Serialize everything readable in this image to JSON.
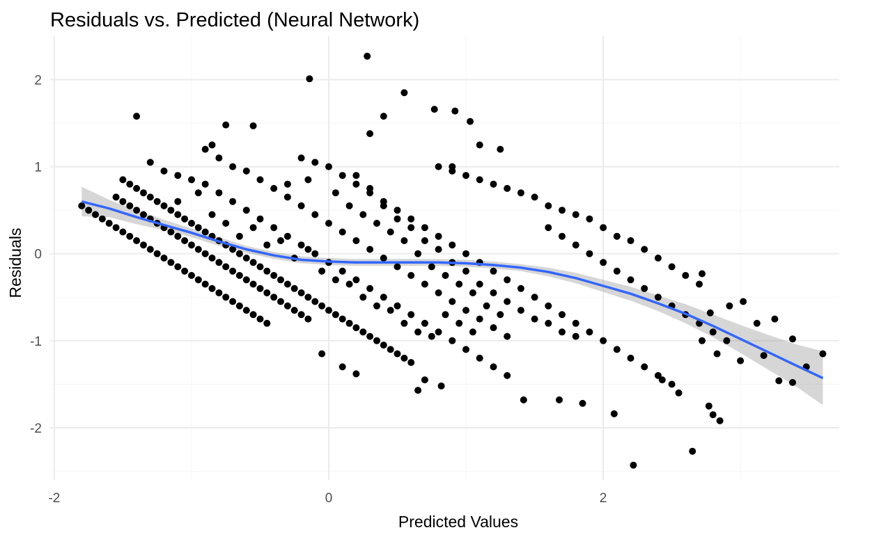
{
  "chart_data": {
    "type": "scatter",
    "title": "Residuals vs. Predicted (Neural Network)",
    "xlabel": "Predicted Values",
    "ylabel": "Residuals",
    "xlim": [
      -2.03,
      3.72
    ],
    "ylim": [
      -2.6,
      2.5
    ],
    "x_ticks": [
      -2,
      0,
      2
    ],
    "x_tick_labels": [
      "-2",
      "0",
      "2"
    ],
    "y_ticks": [
      -2,
      -1,
      0,
      1,
      2
    ],
    "y_tick_labels": [
      "-2",
      "-1",
      "0",
      "1",
      "2"
    ],
    "grid": true,
    "legend": "none",
    "colors": {
      "points": "#000000",
      "smooth_line": "#3366FF",
      "confidence_band": "#999999",
      "grid_major": "#EBEBEB",
      "grid_minor": "#F5F5F5"
    },
    "smooth": {
      "method": "loess",
      "x": [
        -1.8,
        -1.6,
        -1.4,
        -1.2,
        -1.0,
        -0.8,
        -0.6,
        -0.4,
        -0.2,
        0.0,
        0.2,
        0.4,
        0.6,
        0.8,
        1.0,
        1.2,
        1.4,
        1.6,
        1.8,
        2.0,
        2.2,
        2.4,
        2.6,
        2.8,
        3.0,
        3.2,
        3.4,
        3.6
      ],
      "y": [
        0.6,
        0.52,
        0.42,
        0.33,
        0.24,
        0.14,
        0.05,
        -0.02,
        -0.07,
        -0.09,
        -0.1,
        -0.1,
        -0.1,
        -0.1,
        -0.11,
        -0.13,
        -0.16,
        -0.21,
        -0.28,
        -0.37,
        -0.46,
        -0.57,
        -0.69,
        -0.83,
        -0.98,
        -1.13,
        -1.28,
        -1.43
      ],
      "se_upper": [
        0.77,
        0.62,
        0.5,
        0.39,
        0.29,
        0.19,
        0.09,
        0.02,
        -0.03,
        -0.05,
        -0.06,
        -0.06,
        -0.06,
        -0.06,
        -0.07,
        -0.09,
        -0.12,
        -0.16,
        -0.22,
        -0.3,
        -0.38,
        -0.48,
        -0.58,
        -0.7,
        -0.82,
        -0.93,
        -1.04,
        -1.12
      ],
      "se_lower": [
        0.43,
        0.42,
        0.34,
        0.27,
        0.19,
        0.09,
        0.01,
        -0.06,
        -0.11,
        -0.13,
        -0.14,
        -0.14,
        -0.14,
        -0.14,
        -0.15,
        -0.17,
        -0.2,
        -0.26,
        -0.34,
        -0.44,
        -0.54,
        -0.66,
        -0.8,
        -0.96,
        -1.14,
        -1.33,
        -1.52,
        -1.74
      ]
    },
    "points": [
      [
        -1.8,
        0.55
      ],
      [
        -1.75,
        0.5
      ],
      [
        -1.7,
        0.45
      ],
      [
        -1.65,
        0.4
      ],
      [
        -1.6,
        0.35
      ],
      [
        -1.55,
        0.3
      ],
      [
        -1.5,
        0.25
      ],
      [
        -1.45,
        0.2
      ],
      [
        -1.4,
        0.15
      ],
      [
        -1.35,
        0.1
      ],
      [
        -1.3,
        0.05
      ],
      [
        -1.25,
        0.0
      ],
      [
        -1.2,
        -0.05
      ],
      [
        -1.15,
        -0.1
      ],
      [
        -1.1,
        -0.15
      ],
      [
        -1.05,
        -0.2
      ],
      [
        -1.0,
        -0.25
      ],
      [
        -0.95,
        -0.3
      ],
      [
        -0.9,
        -0.35
      ],
      [
        -0.85,
        -0.4
      ],
      [
        -0.8,
        -0.45
      ],
      [
        -0.75,
        -0.5
      ],
      [
        -0.7,
        -0.55
      ],
      [
        -0.65,
        -0.6
      ],
      [
        -0.6,
        -0.65
      ],
      [
        -0.55,
        -0.7
      ],
      [
        -0.5,
        -0.75
      ],
      [
        -0.45,
        -0.8
      ],
      [
        -1.55,
        0.65
      ],
      [
        -1.5,
        0.6
      ],
      [
        -1.45,
        0.55
      ],
      [
        -1.4,
        0.5
      ],
      [
        -1.35,
        0.45
      ],
      [
        -1.3,
        0.4
      ],
      [
        -1.25,
        0.35
      ],
      [
        -1.2,
        0.3
      ],
      [
        -1.15,
        0.25
      ],
      [
        -1.1,
        0.2
      ],
      [
        -1.05,
        0.15
      ],
      [
        -1.0,
        0.1
      ],
      [
        -0.95,
        0.05
      ],
      [
        -0.9,
        0.0
      ],
      [
        -0.85,
        -0.05
      ],
      [
        -0.8,
        -0.1
      ],
      [
        -0.75,
        -0.15
      ],
      [
        -0.7,
        -0.2
      ],
      [
        -0.65,
        -0.25
      ],
      [
        -0.6,
        -0.3
      ],
      [
        -0.55,
        -0.35
      ],
      [
        -0.5,
        -0.4
      ],
      [
        -0.45,
        -0.45
      ],
      [
        -0.4,
        -0.5
      ],
      [
        -0.35,
        -0.55
      ],
      [
        -0.3,
        -0.6
      ],
      [
        -0.25,
        -0.65
      ],
      [
        -0.2,
        -0.7
      ],
      [
        -0.15,
        -0.75
      ],
      [
        -1.5,
        0.85
      ],
      [
        -1.45,
        0.8
      ],
      [
        -1.4,
        0.75
      ],
      [
        -1.35,
        0.7
      ],
      [
        -1.3,
        0.65
      ],
      [
        -1.25,
        0.6
      ],
      [
        -1.2,
        0.55
      ],
      [
        -1.15,
        0.5
      ],
      [
        -1.1,
        0.45
      ],
      [
        -1.05,
        0.4
      ],
      [
        -1.0,
        0.35
      ],
      [
        -0.95,
        0.3
      ],
      [
        -0.9,
        0.25
      ],
      [
        -0.85,
        0.2
      ],
      [
        -0.8,
        0.15
      ],
      [
        -0.75,
        0.1
      ],
      [
        -0.7,
        0.05
      ],
      [
        -0.65,
        0.0
      ],
      [
        -0.6,
        -0.05
      ],
      [
        -0.55,
        -0.1
      ],
      [
        -0.5,
        -0.15
      ],
      [
        -0.45,
        -0.2
      ],
      [
        -0.4,
        -0.25
      ],
      [
        -0.35,
        -0.3
      ],
      [
        -0.3,
        -0.35
      ],
      [
        -0.25,
        -0.4
      ],
      [
        -0.2,
        -0.45
      ],
      [
        -0.15,
        -0.5
      ],
      [
        -0.1,
        -0.55
      ],
      [
        -0.05,
        -0.6
      ],
      [
        0.0,
        -0.65
      ],
      [
        0.05,
        -0.7
      ],
      [
        0.1,
        -0.75
      ],
      [
        0.15,
        -0.8
      ],
      [
        0.2,
        -0.85
      ],
      [
        0.25,
        -0.9
      ],
      [
        0.3,
        -0.95
      ],
      [
        0.35,
        -1.0
      ],
      [
        0.4,
        -1.05
      ],
      [
        0.45,
        -1.1
      ],
      [
        0.5,
        -1.15
      ],
      [
        0.55,
        -1.2
      ],
      [
        0.6,
        -1.25
      ],
      [
        -1.2,
        0.95
      ],
      [
        -1.1,
        0.9
      ],
      [
        -1.0,
        0.85
      ],
      [
        -0.9,
        0.8
      ],
      [
        -0.8,
        0.7
      ],
      [
        -0.7,
        0.6
      ],
      [
        -0.6,
        0.5
      ],
      [
        -0.5,
        0.4
      ],
      [
        -0.4,
        0.3
      ],
      [
        -0.3,
        0.2
      ],
      [
        -0.2,
        0.1
      ],
      [
        -0.1,
        0.0
      ],
      [
        0.0,
        -0.1
      ],
      [
        0.1,
        -0.2
      ],
      [
        0.2,
        -0.3
      ],
      [
        0.3,
        -0.4
      ],
      [
        0.4,
        -0.5
      ],
      [
        0.5,
        -0.6
      ],
      [
        0.6,
        -0.7
      ],
      [
        0.7,
        -0.8
      ],
      [
        0.8,
        -0.9
      ],
      [
        0.9,
        -1.0
      ],
      [
        1.0,
        -1.1
      ],
      [
        1.1,
        -1.2
      ],
      [
        1.2,
        -1.3
      ],
      [
        1.3,
        -1.4
      ],
      [
        -0.9,
        1.2
      ],
      [
        -0.8,
        1.1
      ],
      [
        -0.7,
        1.0
      ],
      [
        -0.6,
        0.95
      ],
      [
        -0.5,
        0.85
      ],
      [
        -0.4,
        0.75
      ],
      [
        -0.3,
        0.65
      ],
      [
        -0.2,
        0.55
      ],
      [
        -0.1,
        0.45
      ],
      [
        0.0,
        0.35
      ],
      [
        0.1,
        0.25
      ],
      [
        0.2,
        0.15
      ],
      [
        0.3,
        0.05
      ],
      [
        0.4,
        -0.05
      ],
      [
        0.5,
        -0.15
      ],
      [
        0.6,
        -0.25
      ],
      [
        0.7,
        -0.35
      ],
      [
        0.8,
        -0.45
      ],
      [
        0.9,
        -0.55
      ],
      [
        1.0,
        -0.65
      ],
      [
        1.1,
        -0.75
      ],
      [
        1.2,
        -0.85
      ],
      [
        1.3,
        -0.95
      ],
      [
        -0.2,
        1.1
      ],
      [
        -0.1,
        1.05
      ],
      [
        0.0,
        1.0
      ],
      [
        0.1,
        0.9
      ],
      [
        0.2,
        0.8
      ],
      [
        0.3,
        0.7
      ],
      [
        0.4,
        0.6
      ],
      [
        0.5,
        0.5
      ],
      [
        0.6,
        0.4
      ],
      [
        0.7,
        0.3
      ],
      [
        0.8,
        0.2
      ],
      [
        0.9,
        0.1
      ],
      [
        1.0,
        0.0
      ],
      [
        1.1,
        -0.1
      ],
      [
        1.2,
        -0.2
      ],
      [
        1.3,
        -0.3
      ],
      [
        1.4,
        -0.4
      ],
      [
        1.5,
        -0.5
      ],
      [
        1.6,
        -0.6
      ],
      [
        1.7,
        -0.7
      ],
      [
        1.8,
        -0.8
      ],
      [
        1.9,
        -0.9
      ],
      [
        2.0,
        -1.0
      ],
      [
        2.1,
        -1.1
      ],
      [
        2.2,
        -1.2
      ],
      [
        2.3,
        -1.3
      ],
      [
        2.4,
        -1.4
      ],
      [
        2.5,
        -1.5
      ],
      [
        0.2,
        0.9
      ],
      [
        0.3,
        0.75
      ],
      [
        0.4,
        0.55
      ],
      [
        0.5,
        0.4
      ],
      [
        0.6,
        0.3
      ],
      [
        0.7,
        0.15
      ],
      [
        0.8,
        0.05
      ],
      [
        0.9,
        -0.1
      ],
      [
        1.0,
        -0.2
      ],
      [
        1.1,
        -0.35
      ],
      [
        1.2,
        -0.45
      ],
      [
        1.3,
        -0.55
      ],
      [
        1.4,
        -0.65
      ],
      [
        1.5,
        -0.75
      ],
      [
        1.6,
        -0.8
      ],
      [
        1.7,
        -0.9
      ],
      [
        1.8,
        -0.95
      ],
      [
        0.8,
        1.0
      ],
      [
        0.9,
        0.95
      ],
      [
        1.0,
        0.9
      ],
      [
        1.1,
        0.85
      ],
      [
        1.2,
        0.8
      ],
      [
        1.3,
        0.75
      ],
      [
        1.4,
        0.7
      ],
      [
        1.5,
        0.65
      ],
      [
        1.6,
        0.55
      ],
      [
        1.7,
        0.5
      ],
      [
        1.8,
        0.45
      ],
      [
        1.9,
        0.4
      ],
      [
        2.0,
        0.3
      ],
      [
        2.1,
        0.2
      ],
      [
        2.2,
        0.15
      ],
      [
        2.3,
        0.05
      ],
      [
        2.4,
        -0.05
      ],
      [
        2.5,
        -0.15
      ],
      [
        2.6,
        -0.25
      ],
      [
        2.7,
        -0.35
      ],
      [
        1.6,
        0.3
      ],
      [
        1.7,
        0.2
      ],
      [
        1.8,
        0.1
      ],
      [
        1.9,
        0.0
      ],
      [
        2.0,
        -0.1
      ],
      [
        2.1,
        -0.2
      ],
      [
        2.2,
        -0.3
      ],
      [
        2.3,
        -0.4
      ],
      [
        2.4,
        -0.5
      ],
      [
        2.5,
        -0.6
      ],
      [
        2.6,
        -0.7
      ],
      [
        2.7,
        -0.8
      ],
      [
        2.8,
        -0.9
      ],
      [
        2.9,
        -1.0
      ],
      [
        -1.1,
        0.6
      ],
      [
        -0.95,
        0.7
      ],
      [
        -0.85,
        0.45
      ],
      [
        -0.75,
        0.35
      ],
      [
        -0.65,
        0.2
      ],
      [
        -0.55,
        0.3
      ],
      [
        -0.45,
        0.1
      ],
      [
        -0.35,
        0.15
      ],
      [
        -0.25,
        -0.05
      ],
      [
        -0.15,
        0.05
      ],
      [
        -0.05,
        -0.2
      ],
      [
        0.05,
        -0.3
      ],
      [
        0.15,
        -0.35
      ],
      [
        0.25,
        -0.5
      ],
      [
        0.35,
        -0.6
      ],
      [
        0.45,
        -0.65
      ],
      [
        0.55,
        -0.8
      ],
      [
        0.65,
        -0.9
      ],
      [
        0.75,
        -0.95
      ],
      [
        0.85,
        -0.7
      ],
      [
        0.95,
        -0.8
      ],
      [
        1.05,
        -0.9
      ],
      [
        -0.3,
        0.8
      ],
      [
        -0.15,
        0.85
      ],
      [
        0.05,
        0.7
      ],
      [
        0.15,
        0.55
      ],
      [
        0.25,
        0.45
      ],
      [
        0.35,
        0.35
      ],
      [
        0.45,
        0.25
      ],
      [
        0.55,
        0.15
      ],
      [
        0.65,
        0.0
      ],
      [
        0.75,
        -0.15
      ],
      [
        0.85,
        -0.25
      ],
      [
        0.95,
        -0.35
      ],
      [
        1.05,
        -0.45
      ],
      [
        1.15,
        -0.6
      ],
      [
        1.25,
        -0.7
      ],
      [
        -1.4,
        1.58
      ],
      [
        -0.75,
        1.48
      ],
      [
        -0.55,
        1.47
      ],
      [
        -0.14,
        2.01
      ],
      [
        0.28,
        2.27
      ],
      [
        0.55,
        1.85
      ],
      [
        0.77,
        1.66
      ],
      [
        0.92,
        1.64
      ],
      [
        1.03,
        1.52
      ],
      [
        0.3,
        1.38
      ],
      [
        0.4,
        1.58
      ],
      [
        1.1,
        1.25
      ],
      [
        1.25,
        1.2
      ],
      [
        0.9,
        1.0
      ],
      [
        -0.85,
        1.25
      ],
      [
        -1.3,
        1.05
      ],
      [
        -0.05,
        -1.15
      ],
      [
        0.1,
        -1.3
      ],
      [
        0.2,
        -1.38
      ],
      [
        0.65,
        -1.57
      ],
      [
        0.7,
        -1.45
      ],
      [
        0.82,
        -1.52
      ],
      [
        1.42,
        -1.68
      ],
      [
        1.68,
        -1.68
      ],
      [
        1.85,
        -1.72
      ],
      [
        2.08,
        -1.84
      ],
      [
        2.22,
        -2.43
      ],
      [
        2.65,
        -2.27
      ],
      [
        2.8,
        -1.85
      ],
      [
        2.85,
        -1.92
      ],
      [
        2.77,
        -1.75
      ],
      [
        2.55,
        -1.6
      ],
      [
        2.43,
        -1.45
      ],
      [
        2.72,
        -0.23
      ],
      [
        2.92,
        -0.6
      ],
      [
        3.02,
        -0.55
      ],
      [
        3.12,
        -0.8
      ],
      [
        3.25,
        -0.75
      ],
      [
        3.17,
        -1.17
      ],
      [
        3.0,
        -1.23
      ],
      [
        3.28,
        -1.46
      ],
      [
        3.38,
        -0.98
      ],
      [
        3.38,
        -1.48
      ],
      [
        3.48,
        -1.3
      ],
      [
        3.6,
        -1.15
      ],
      [
        2.78,
        -0.68
      ],
      [
        2.72,
        -1.0
      ],
      [
        2.83,
        -1.15
      ]
    ]
  }
}
